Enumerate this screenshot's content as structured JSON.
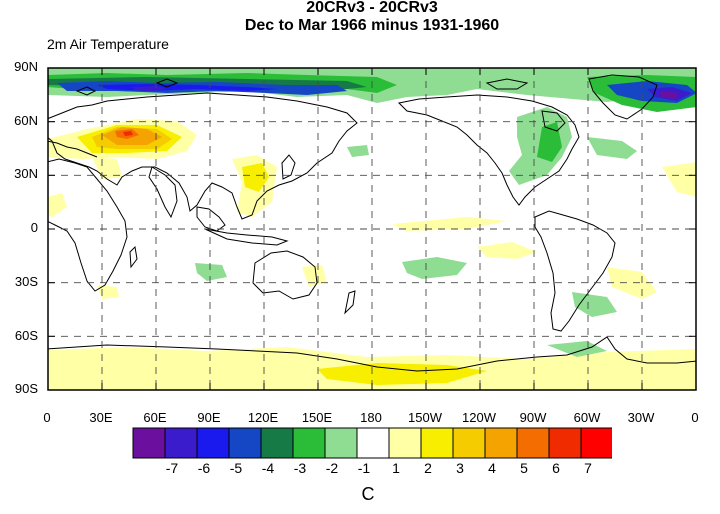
{
  "header": {
    "title_line1": "20CRv3 - 20CRv3",
    "title_line2": "Dec to Mar 1966 minus 1931-1960",
    "variable": "2m Air Temperature"
  },
  "axes": {
    "lat_labels": [
      "90N",
      "60N",
      "30N",
      "0",
      "30S",
      "60S",
      "90S"
    ],
    "lon_labels": [
      "0",
      "30E",
      "60E",
      "90E",
      "120E",
      "150E",
      "180",
      "150W",
      "120W",
      "90W",
      "60W",
      "30W",
      "0"
    ]
  },
  "colorbar": {
    "levels": [
      "-7",
      "-6",
      "-5",
      "-4",
      "-3",
      "-2",
      "-1",
      "1",
      "2",
      "3",
      "4",
      "5",
      "6",
      "7"
    ],
    "colors": [
      "#6a0f9e",
      "#3b1ccc",
      "#1a1aef",
      "#1547c4",
      "#167a47",
      "#2bbd38",
      "#8fdc93",
      "#ffffff",
      "#ffffa6",
      "#f7ee00",
      "#f5cc00",
      "#f5a300",
      "#f36d00",
      "#f02b00",
      "#ff0000"
    ],
    "units": "C"
  },
  "map": {
    "projection": "cylindrical equidistant",
    "gridlines": "dashed every 30 degrees",
    "palette": {
      "g_light": "#8fdc93",
      "g_mid": "#2bbd38",
      "g_dark": "#167a47",
      "b_mid": "#1547c4",
      "b_bright": "#1a1aef",
      "b_deep": "#3b1ccc",
      "purple": "#6a0f9e",
      "y_pale": "#ffffa6",
      "y": "#f7ee00",
      "y_gold": "#f5cc00",
      "orange": "#f5a300",
      "orange_red": "#f36d00",
      "red": "#f02b00"
    }
  }
}
